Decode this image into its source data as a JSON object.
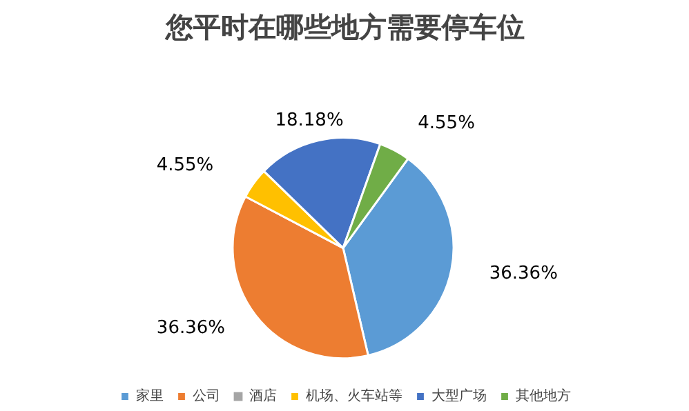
{
  "chart_data": {
    "type": "pie",
    "title": "您平时在哪些地方需要停车位",
    "categories": [
      "家里",
      "公司",
      "酒店",
      "机场、火车站等",
      "大型广场",
      "其他地方"
    ],
    "values": [
      36.36,
      36.36,
      0,
      4.55,
      18.18,
      4.55
    ],
    "colors": [
      "#5b9bd5",
      "#ed7d31",
      "#a5a5a5",
      "#ffc000",
      "#4472c4",
      "#70ad47"
    ],
    "value_labels": [
      "36.36%",
      "36.36%",
      null,
      "4.55%",
      "18.18%",
      "4.55%"
    ],
    "legend": "bottom"
  }
}
